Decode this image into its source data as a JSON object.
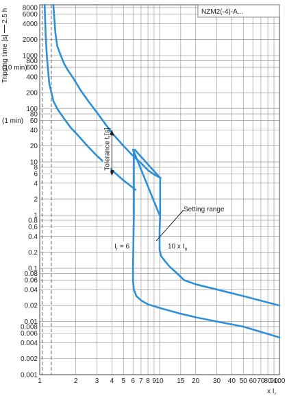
{
  "chart_data": {
    "type": "line",
    "title": "NZM2(-4)-A...",
    "ylabel": "Tripping time [s]",
    "ylabel_top": "2.5 h",
    "xlabel": "x I",
    "xlabel_sub": "r",
    "x_scale": "log",
    "y_scale": "log",
    "xlim": [
      1,
      100
    ],
    "ylim": [
      0.001,
      9000
    ],
    "grid": true,
    "x_ticks": [
      {
        "v": 1,
        "t": "1"
      },
      {
        "v": 2,
        "t": "2"
      },
      {
        "v": 3,
        "t": "3"
      },
      {
        "v": 4,
        "t": "4"
      },
      {
        "v": 5,
        "t": "5"
      },
      {
        "v": 6,
        "t": "6"
      },
      {
        "v": 7,
        "t": "7"
      },
      {
        "v": 8,
        "t": "8"
      },
      {
        "v": 9,
        "t": "9"
      },
      {
        "v": 10,
        "t": "10"
      },
      {
        "v": 15,
        "t": "15"
      },
      {
        "v": 20,
        "t": "20"
      },
      {
        "v": 30,
        "t": "30"
      },
      {
        "v": 40,
        "t": "40"
      },
      {
        "v": 50,
        "t": "50"
      },
      {
        "v": 60,
        "t": "60"
      },
      {
        "v": 70,
        "t": "70"
      },
      {
        "v": 80,
        "t": "80"
      },
      {
        "v": 90,
        "t": "90"
      },
      {
        "v": 100,
        "t": "100"
      }
    ],
    "y_ticks": [
      {
        "v": 8000,
        "t": "8000"
      },
      {
        "v": 6000,
        "t": "6000"
      },
      {
        "v": 4000,
        "t": "4000"
      },
      {
        "v": 2000,
        "t": "2000"
      },
      {
        "v": 1000,
        "t": "1000"
      },
      {
        "v": 800,
        "t": "800"
      },
      {
        "v": 600,
        "t": "600"
      },
      {
        "v": 400,
        "t": "400"
      },
      {
        "v": 200,
        "t": "200"
      },
      {
        "v": 100,
        "t": "100"
      },
      {
        "v": 80,
        "t": "80"
      },
      {
        "v": 60,
        "t": "60"
      },
      {
        "v": 40,
        "t": "40"
      },
      {
        "v": 20,
        "t": "20"
      },
      {
        "v": 10,
        "t": "10"
      },
      {
        "v": 8,
        "t": "8"
      },
      {
        "v": 6,
        "t": "6"
      },
      {
        "v": 4,
        "t": "4"
      },
      {
        "v": 2,
        "t": "2"
      },
      {
        "v": 1,
        "t": "1"
      },
      {
        "v": 0.8,
        "t": "0.8"
      },
      {
        "v": 0.6,
        "t": "0.6"
      },
      {
        "v": 0.4,
        "t": "0.4"
      },
      {
        "v": 0.2,
        "t": "0.2"
      },
      {
        "v": 0.1,
        "t": "0.1"
      },
      {
        "v": 0.08,
        "t": "0.08"
      },
      {
        "v": 0.06,
        "t": "0.06"
      },
      {
        "v": 0.04,
        "t": "0.04"
      },
      {
        "v": 0.02,
        "t": "0.02"
      },
      {
        "v": 0.01,
        "t": "0.01"
      },
      {
        "v": 0.008,
        "t": "0.008"
      },
      {
        "v": 0.006,
        "t": "0.006"
      },
      {
        "v": 0.004,
        "t": "0.004"
      },
      {
        "v": 0.002,
        "t": "0.002"
      },
      {
        "v": 0.001,
        "t": "0.001"
      }
    ],
    "y_side_labels": [
      {
        "v": 600,
        "t": "(10 min)"
      },
      {
        "v": 60,
        "t": "(1 min)"
      }
    ],
    "grid_x": [
      1,
      2,
      3,
      4,
      5,
      6,
      7,
      8,
      9,
      10,
      15,
      20,
      30,
      40,
      50,
      60,
      70,
      80,
      90,
      100
    ],
    "grid_y": [
      0.001,
      0.002,
      0.004,
      0.006,
      0.008,
      0.01,
      0.02,
      0.04,
      0.06,
      0.08,
      0.1,
      0.2,
      0.4,
      0.6,
      0.8,
      1,
      2,
      4,
      6,
      8,
      10,
      20,
      40,
      60,
      80,
      100,
      200,
      400,
      600,
      800,
      1000,
      2000,
      4000,
      6000,
      8000
    ],
    "dashed_x": [
      1.05,
      1.25
    ],
    "line_color": "#2e8fd6",
    "series": [
      {
        "x": [
          1.1,
          1.12,
          1.15,
          1.2,
          1.3,
          1.4,
          1.6,
          1.8,
          2,
          2.5,
          3,
          3.5,
          4,
          5,
          6.3
        ],
        "y": [
          9000,
          2500,
          900,
          300,
          140,
          100,
          65,
          45,
          35,
          20,
          13,
          9.5,
          7,
          4.5,
          3.0
        ]
      },
      {
        "x": [
          1.3,
          1.35,
          1.4,
          1.5,
          1.6,
          1.7,
          1.9,
          2.2,
          2.6,
          3,
          4,
          5,
          6,
          7,
          8,
          9,
          10.2
        ],
        "y": [
          9000,
          2700,
          1500,
          1000,
          700,
          550,
          380,
          220,
          130,
          85,
          35,
          20,
          13,
          9.5,
          7,
          5.8,
          5.0
        ]
      },
      {
        "x": [
          6.1,
          6.1,
          6.0,
          6.0,
          6.1,
          6.4,
          7,
          8,
          10,
          15,
          20,
          30,
          50,
          100
        ],
        "y": [
          17,
          1,
          0.1,
          0.06,
          0.04,
          0.03,
          0.025,
          0.021,
          0.018,
          0.014,
          0.012,
          0.01,
          0.008,
          0.005
        ]
      },
      {
        "x": [
          10.1,
          10.1,
          10.0,
          10.0,
          10.3,
          11,
          12,
          14,
          16,
          20,
          30,
          50,
          100
        ],
        "y": [
          5.0,
          1.0,
          0.5,
          0.22,
          0.17,
          0.14,
          0.11,
          0.08,
          0.06,
          0.05,
          0.04,
          0.03,
          0.02
        ]
      },
      {
        "x": [
          6.0,
          10.0
        ],
        "y": [
          17,
          1.0
        ]
      },
      {
        "x": [
          6.2,
          10.1
        ],
        "y": [
          17,
          5.0
        ]
      }
    ],
    "annotations": {
      "tolerance": "Tolerance t",
      "tolerance_sub": "r",
      "tolerance_unit": "[s]",
      "setting_range": "Setting range",
      "ir_eq": "I",
      "ir_eq_sub": "r",
      "ir_eq_val": " = 6",
      "in_label": "10 x I",
      "in_label_sub": "n"
    }
  }
}
